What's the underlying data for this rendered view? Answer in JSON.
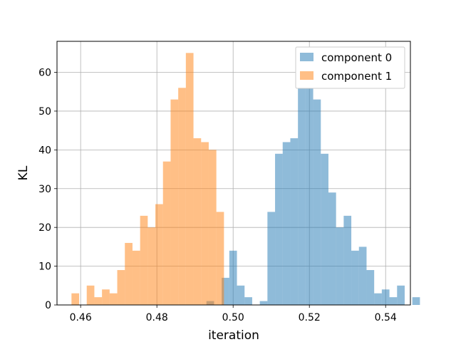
{
  "chart_data": {
    "type": "histogram",
    "xlabel": "iteration",
    "ylabel": "KL",
    "xlim": [
      0.4538,
      0.5465
    ],
    "ylim": [
      0,
      68
    ],
    "xticks": [
      0.46,
      0.48,
      0.5,
      0.52,
      0.54
    ],
    "xtick_labels": [
      "0.46",
      "0.48",
      "0.50",
      "0.52",
      "0.54"
    ],
    "yticks": [
      0,
      10,
      20,
      30,
      40,
      50,
      60
    ],
    "ytick_labels": [
      "0",
      "10",
      "20",
      "30",
      "40",
      "50",
      "60"
    ],
    "grid": true,
    "legend_position": "top-right",
    "series": [
      {
        "name": "component 0",
        "color": "#1f77b4",
        "alpha": 0.5,
        "bin_start": 0.493,
        "bin_width": 0.002,
        "counts": [
          1,
          0,
          7,
          14,
          5,
          2,
          0,
          1,
          24,
          39,
          42,
          43,
          65,
          56,
          53,
          39,
          29,
          20,
          23,
          14,
          15,
          9,
          3,
          4,
          2,
          5,
          0,
          2
        ]
      },
      {
        "name": "component 1",
        "color": "#ff7f0e",
        "alpha": 0.5,
        "bin_start": 0.4576,
        "bin_width": 0.002,
        "counts": [
          3,
          0,
          5,
          2,
          4,
          3,
          9,
          16,
          14,
          23,
          20,
          26,
          37,
          53,
          56,
          65,
          43,
          42,
          40,
          24,
          0,
          0,
          0,
          0,
          0,
          0
        ]
      }
    ]
  }
}
